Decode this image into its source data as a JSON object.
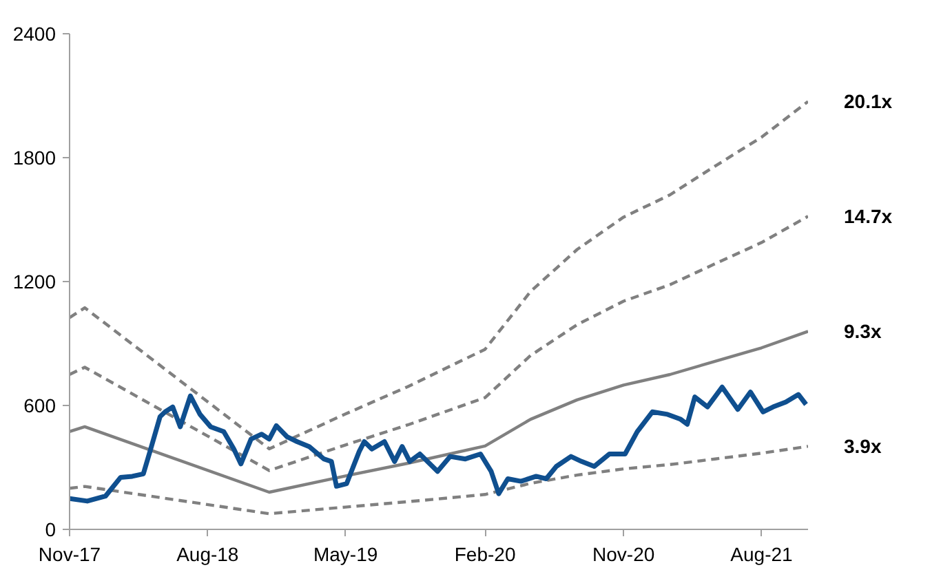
{
  "chart_data": {
    "type": "line",
    "xlim": [
      "2017-11-01",
      "2021-11-01"
    ],
    "ylim": [
      0,
      2400
    ],
    "yticks": [
      0,
      600,
      1200,
      1800,
      2400
    ],
    "xticks": [
      {
        "value": "2017-11-01",
        "label": "Nov-17"
      },
      {
        "value": "2018-08-01",
        "label": "Aug-18"
      },
      {
        "value": "2019-05-01",
        "label": "May-19"
      },
      {
        "value": "2020-02-01",
        "label": "Feb-20"
      },
      {
        "value": "2020-11-01",
        "label": "Nov-20"
      },
      {
        "value": "2021-08-01",
        "label": "Aug-21"
      }
    ],
    "grid": false,
    "legend": false,
    "series": [
      {
        "name": "20.1x",
        "color": "#808080",
        "line_style": "dashed",
        "x": [
          "2017-11-01",
          "2017-12-01",
          "2018-12-01",
          "2019-05-01",
          "2019-09-01",
          "2020-02-01",
          "2020-05-01",
          "2020-08-01",
          "2020-11-01",
          "2021-02-01",
          "2021-05-01",
          "2021-08-01",
          "2021-11-01"
        ],
        "values": [
          1025,
          1073,
          390,
          559,
          691,
          872,
          1152,
          1355,
          1512,
          1620,
          1759,
          1899,
          2072
        ]
      },
      {
        "name": "14.7x",
        "color": "#808080",
        "line_style": "dashed",
        "x": [
          "2017-11-01",
          "2017-12-01",
          "2018-12-01",
          "2019-05-01",
          "2019-09-01",
          "2020-02-01",
          "2020-05-01",
          "2020-08-01",
          "2020-11-01",
          "2021-02-01",
          "2021-05-01",
          "2021-08-01",
          "2021-11-01"
        ],
        "values": [
          750,
          785,
          285,
          409,
          506,
          638,
          842,
          991,
          1105,
          1185,
          1286,
          1389,
          1516
        ]
      },
      {
        "name": "9.3x",
        "color": "#808080",
        "line_style": "solid",
        "x": [
          "2017-11-01",
          "2017-12-01",
          "2018-12-01",
          "2019-05-01",
          "2019-09-01",
          "2020-02-01",
          "2020-05-01",
          "2020-08-01",
          "2020-11-01",
          "2021-02-01",
          "2021-05-01",
          "2021-08-01",
          "2021-11-01"
        ],
        "values": [
          474,
          497,
          180,
          259,
          320,
          404,
          533,
          627,
          699,
          750,
          814,
          879,
          959
        ]
      },
      {
        "name": "3.9x",
        "color": "#808080",
        "line_style": "dashed",
        "x": [
          "2017-11-01",
          "2017-12-01",
          "2018-12-01",
          "2019-05-01",
          "2019-09-01",
          "2020-02-01",
          "2020-05-01",
          "2020-08-01",
          "2020-11-01",
          "2021-02-01",
          "2021-05-01",
          "2021-08-01",
          "2021-11-01"
        ],
        "values": [
          199,
          208,
          76,
          108,
          134,
          169,
          223,
          263,
          293,
          314,
          341,
          369,
          402
        ]
      },
      {
        "color": "#0f4f8f",
        "line_style": "solid",
        "x": [
          "2017-11-01",
          "2017-12-06",
          "2018-01-11",
          "2018-02-10",
          "2018-03-05",
          "2018-03-27",
          "2018-04-09",
          "2018-04-29",
          "2018-05-09",
          "2018-05-24",
          "2018-06-08",
          "2018-06-28",
          "2018-07-17",
          "2018-08-07",
          "2018-09-02",
          "2018-09-22",
          "2018-10-06",
          "2018-10-26",
          "2018-11-16",
          "2018-12-01",
          "2018-12-15",
          "2019-01-05",
          "2019-01-25",
          "2019-02-18",
          "2019-03-19",
          "2019-04-03",
          "2019-04-13",
          "2019-05-03",
          "2019-05-28",
          "2019-06-07",
          "2019-06-22",
          "2019-07-17",
          "2019-08-06",
          "2019-08-21",
          "2019-09-05",
          "2019-09-25",
          "2019-10-30",
          "2019-11-24",
          "2019-12-24",
          "2020-01-23",
          "2020-02-13",
          "2020-02-28",
          "2020-03-17",
          "2020-04-12",
          "2020-05-12",
          "2020-06-01",
          "2020-06-21",
          "2020-07-20",
          "2020-08-10",
          "2020-09-04",
          "2020-10-04",
          "2020-11-04",
          "2020-11-28",
          "2020-12-28",
          "2021-01-27",
          "2021-02-22",
          "2021-03-07",
          "2021-03-22",
          "2021-04-16",
          "2021-05-15",
          "2021-06-15",
          "2021-07-10",
          "2021-08-04",
          "2021-08-24",
          "2021-09-18",
          "2021-10-13",
          "2021-10-28"
        ],
        "values": [
          149,
          137,
          161,
          252,
          257,
          269,
          377,
          546,
          569,
          593,
          497,
          646,
          557,
          497,
          473,
          389,
          317,
          437,
          461,
          437,
          502,
          449,
          425,
          401,
          341,
          329,
          209,
          221,
          377,
          425,
          389,
          425,
          329,
          401,
          329,
          365,
          281,
          353,
          341,
          365,
          281,
          173,
          245,
          233,
          257,
          245,
          305,
          353,
          329,
          305,
          365,
          365,
          473,
          569,
          557,
          533,
          509,
          641,
          593,
          689,
          581,
          665,
          569,
          593,
          617,
          653,
          605
        ]
      }
    ]
  }
}
